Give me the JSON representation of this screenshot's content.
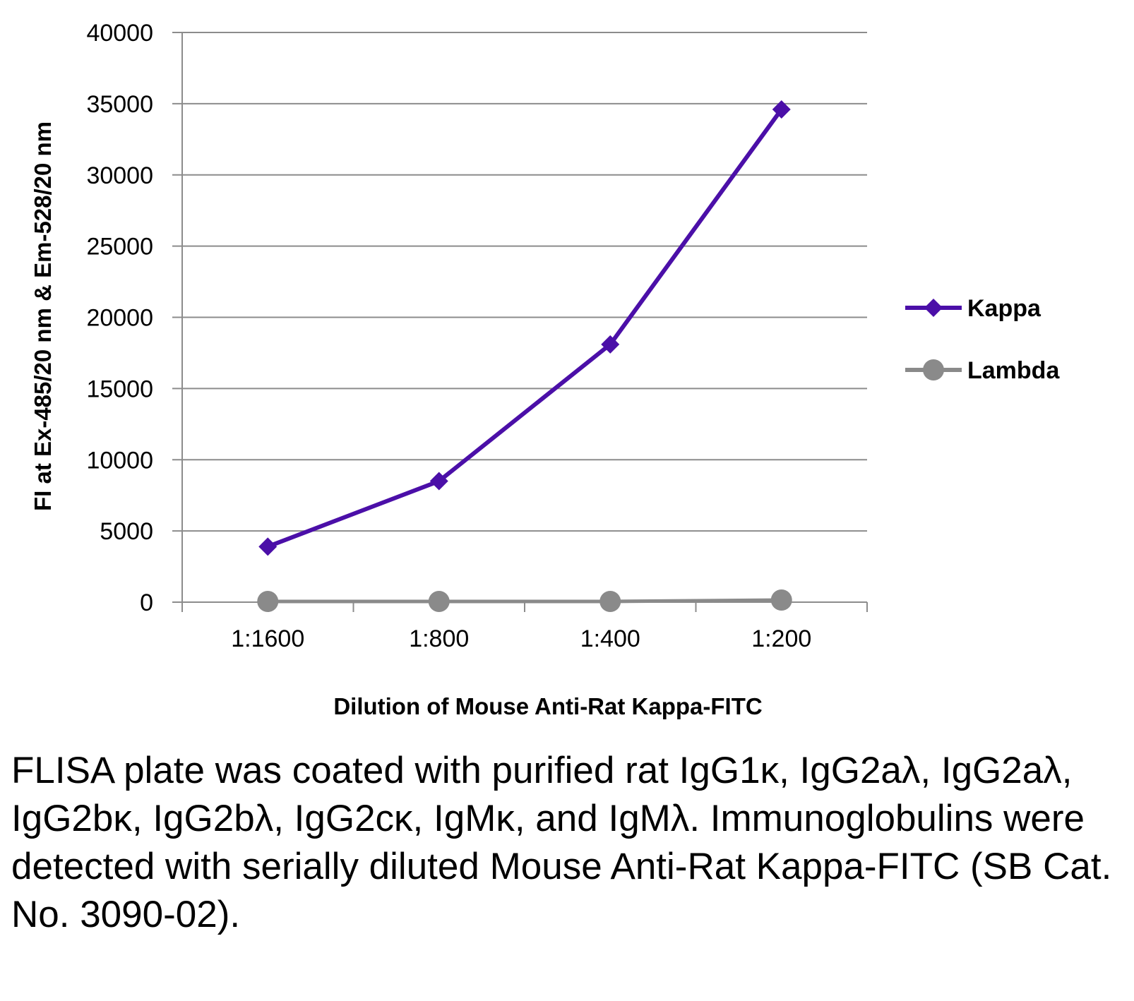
{
  "chart_data": {
    "type": "line",
    "categories": [
      "1:1600",
      "1:800",
      "1:400",
      "1:200"
    ],
    "series": [
      {
        "name": "Kappa",
        "values": [
          3900,
          8500,
          18100,
          34600
        ],
        "color": "#4b0fa8",
        "marker": "diamond"
      },
      {
        "name": "Lambda",
        "values": [
          50,
          50,
          50,
          150
        ],
        "color": "#8a8a8a",
        "marker": "circle"
      }
    ],
    "xlabel": "Dilution of Mouse Anti-Rat Kappa-FITC",
    "ylabel": "FI at Ex-485/20 nm & Em-528/20 nm",
    "ylim": [
      0,
      40000
    ],
    "yticks": [
      "0",
      "5000",
      "10000",
      "15000",
      "20000",
      "25000",
      "30000",
      "35000",
      "40000"
    ],
    "grid": "horizontal",
    "legend_position": "right"
  },
  "caption": "FLISA plate was coated with purified rat IgG1κ, IgG2aλ, IgG2aλ, IgG2bκ, IgG2bλ, IgG2cκ, IgMκ, and IgMλ.  Immunoglobulins were detected with serially diluted Mouse Anti-Rat Kappa-FITC (SB Cat. No. 3090-02)."
}
